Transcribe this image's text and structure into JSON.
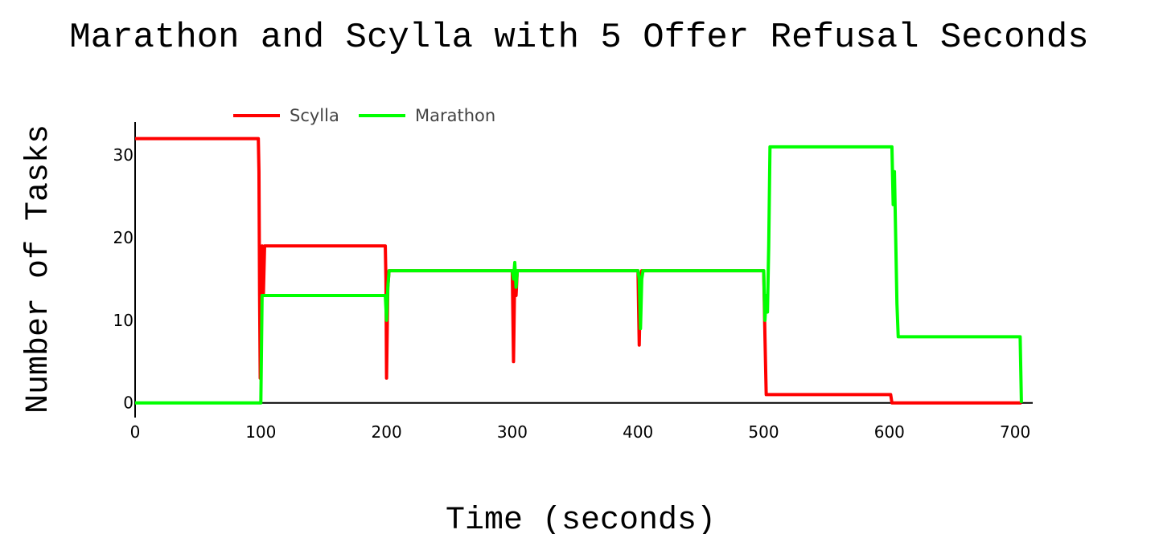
{
  "chart_data": {
    "type": "line",
    "title": "Marathon and Scylla with 5 Offer Refusal Seconds",
    "xlabel": "Time (seconds)",
    "ylabel": "Number of Tasks",
    "xlim": [
      0,
      714
    ],
    "ylim": [
      -1,
      34
    ],
    "xticks": [
      0,
      100,
      200,
      300,
      400,
      500,
      600,
      700
    ],
    "yticks": [
      0,
      10,
      20,
      30
    ],
    "grid": false,
    "legend_position": "top-left",
    "series": [
      {
        "name": "Scylla",
        "color": "#ff0000",
        "x": [
          0,
          98,
          98.5,
          99,
          99.5,
          100,
          101,
          102,
          103,
          104,
          105,
          199,
          199.5,
          200,
          201,
          202,
          203,
          204,
          205,
          300,
          301,
          302,
          303,
          304,
          305,
          400,
          401,
          402,
          403,
          404,
          405,
          500,
          501,
          502,
          503,
          504,
          505,
          506,
          507,
          508,
          600,
          601,
          602,
          603,
          704,
          705
        ],
        "y": [
          32,
          32,
          28,
          13,
          3,
          13,
          19,
          13,
          19,
          19,
          19,
          19,
          15,
          3,
          14,
          16,
          16,
          16,
          16,
          16,
          5,
          16,
          13,
          16,
          16,
          16,
          7,
          15,
          16,
          16,
          16,
          16,
          8,
          1,
          1,
          1,
          1,
          1,
          1,
          1,
          1,
          1,
          0,
          0,
          0,
          0
        ]
      },
      {
        "name": "Marathon",
        "color": "#00ff00",
        "x": [
          0,
          98,
          99,
          100,
          101,
          102,
          103,
          104,
          105,
          199,
          200,
          201,
          202,
          203,
          204,
          205,
          300,
          301,
          302,
          303,
          304,
          305,
          400,
          401,
          402,
          403,
          404,
          405,
          500,
          501,
          502,
          503,
          504,
          505,
          506,
          507,
          508,
          600,
          601,
          602,
          603,
          604,
          605,
          606,
          607,
          608,
          609,
          610,
          704,
          705
        ],
        "y": [
          0,
          0,
          0,
          0,
          13,
          13,
          13,
          13,
          13,
          13,
          10,
          14,
          16,
          16,
          16,
          16,
          16,
          15,
          17,
          14,
          16,
          16,
          16,
          15,
          9,
          15,
          16,
          16,
          16,
          10,
          13,
          11,
          19,
          31,
          31,
          31,
          31,
          31,
          31,
          31,
          24,
          28,
          20,
          12,
          8,
          8,
          8,
          8,
          8,
          0
        ]
      }
    ]
  }
}
